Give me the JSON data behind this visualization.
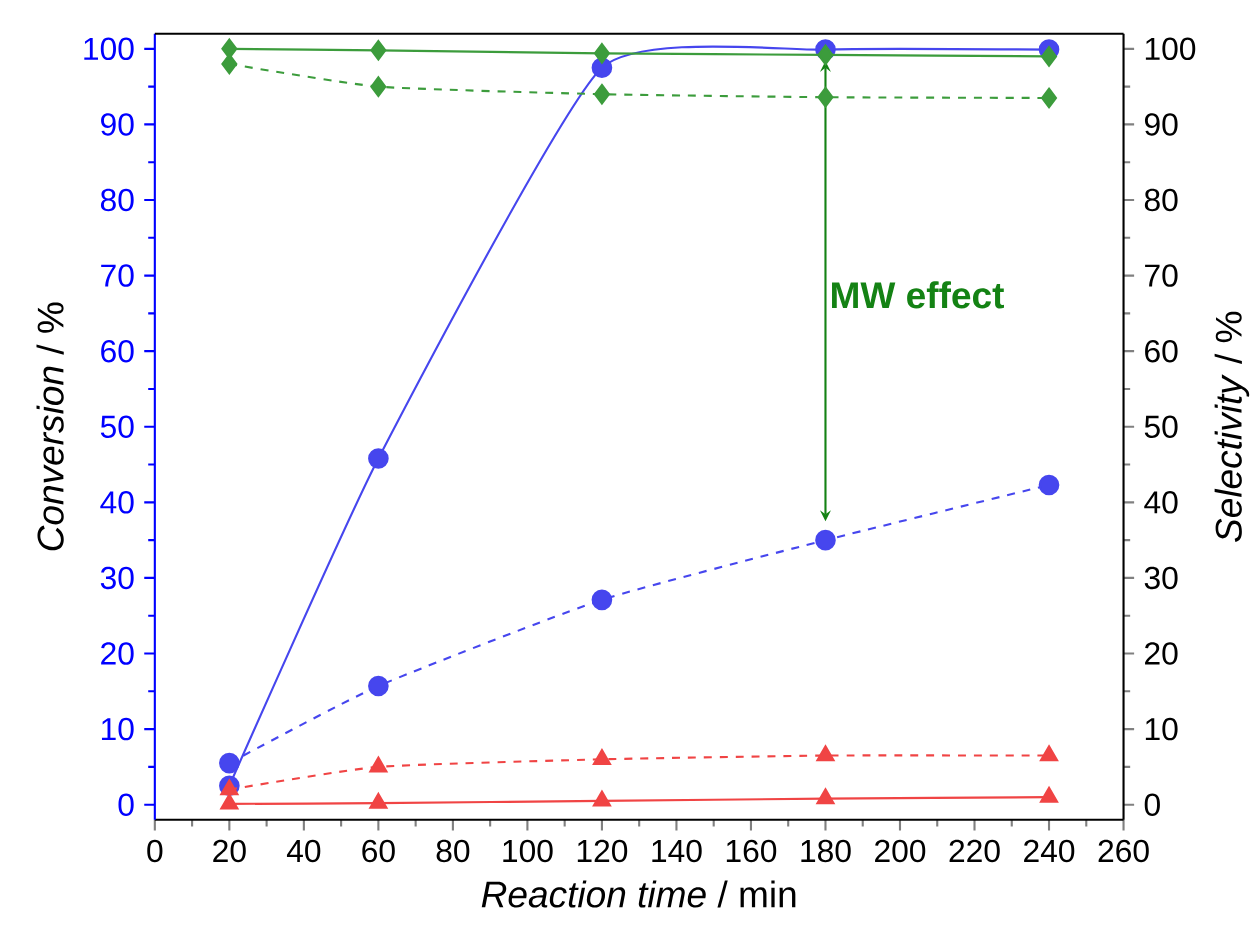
{
  "chart_data": {
    "type": "line",
    "xlabel": "*Reaction time* / min",
    "ylabel": "*Conversion* / %",
    "y2label": "*Selectivity* / %",
    "xlim": [
      0,
      260
    ],
    "xticks": [
      0,
      20,
      40,
      60,
      80,
      100,
      120,
      140,
      160,
      180,
      200,
      220,
      240,
      260
    ],
    "ylim": [
      -2,
      102
    ],
    "yticks": [
      0,
      10,
      20,
      30,
      40,
      50,
      60,
      70,
      80,
      90,
      100
    ],
    "y2lim": [
      -2,
      102
    ],
    "y2ticks": [
      0,
      10,
      20,
      30,
      40,
      50,
      60,
      70,
      80,
      90,
      100
    ],
    "annotations": [
      "MW effect"
    ],
    "series": [
      {
        "color": "#4646ee",
        "marker": "circle",
        "line_style": "solid",
        "x": [
          20,
          60,
          120,
          180,
          240
        ],
        "values": [
          2.5,
          45.8,
          97.5,
          99.9,
          99.9
        ]
      },
      {
        "color": "#4646ee",
        "marker": "circle",
        "line_style": "dashed",
        "x": [
          20,
          60,
          120,
          180,
          240
        ],
        "values": [
          5.5,
          15.7,
          27.1,
          35,
          42.3
        ]
      },
      {
        "color": "#3c9c3c",
        "marker": "diamond",
        "line_style": "solid",
        "axis": "y2",
        "x": [
          20,
          60,
          120,
          180,
          240
        ],
        "values": [
          100,
          99.8,
          99.4,
          99.2,
          99
        ]
      },
      {
        "color": "#3c9c3c",
        "marker": "diamond",
        "line_style": "dashed",
        "axis": "y2",
        "x": [
          20,
          60,
          120,
          180,
          240
        ],
        "values": [
          98,
          95,
          94,
          93.6,
          93.5
        ]
      },
      {
        "color": "#f04444",
        "marker": "triangle",
        "line_style": "solid",
        "axis": "y2",
        "x": [
          20,
          60,
          120,
          180,
          240
        ],
        "values": [
          0.1,
          0.2,
          0.5,
          0.8,
          1.0
        ]
      },
      {
        "color": "#f04444",
        "marker": "triangle",
        "line_style": "dashed",
        "axis": "y2",
        "x": [
          20,
          60,
          120,
          180,
          240
        ],
        "values": [
          2,
          5,
          6,
          6.5,
          6.5
        ]
      }
    ]
  }
}
